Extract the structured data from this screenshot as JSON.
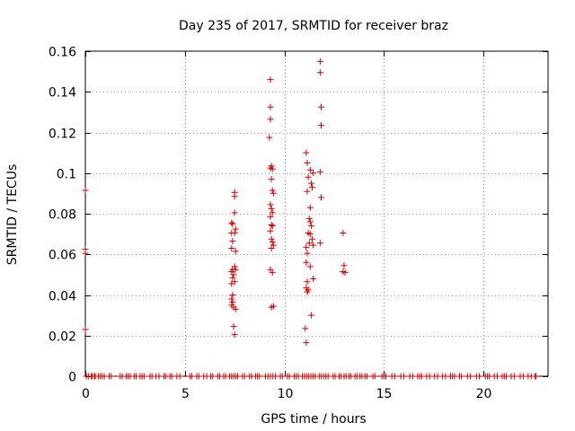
{
  "chart_data": {
    "type": "scatter",
    "title": "Day 235 of 2017, SRMTID for receiver braz",
    "xlabel": "GPS time / hours",
    "ylabel": "SRMTID / TECUs",
    "xlim": [
      0,
      23.25
    ],
    "ylim": [
      0,
      0.16
    ],
    "xticks": [
      0,
      5,
      10,
      15,
      20
    ],
    "xtick_labels": [
      "0",
      "5",
      "10",
      "15",
      "20"
    ],
    "yticks": [
      0,
      0.02,
      0.04,
      0.06,
      0.08,
      0.1,
      0.12,
      0.14,
      0.16
    ],
    "ytick_labels": [
      "0",
      "0.02",
      "0.04",
      "0.06",
      "0.08",
      "0.1",
      "0.12",
      "0.14",
      "0.16"
    ],
    "grid": true,
    "marker": "+",
    "color": "#d40000",
    "series": [
      {
        "name": "SRMTID",
        "points": [
          [
            0.0,
            0.0915
          ],
          [
            0.0,
            0.0625
          ],
          [
            0.0,
            0.0605
          ],
          [
            0.0,
            0.023
          ],
          [
            7.35,
            0.0755
          ],
          [
            7.4,
            0.075
          ],
          [
            7.35,
            0.0705
          ],
          [
            7.4,
            0.0665
          ],
          [
            7.35,
            0.063
          ],
          [
            7.4,
            0.0525
          ],
          [
            7.35,
            0.0515
          ],
          [
            7.45,
            0.05
          ],
          [
            7.4,
            0.0485
          ],
          [
            7.35,
            0.0455
          ],
          [
            7.4,
            0.04
          ],
          [
            7.35,
            0.038
          ],
          [
            7.4,
            0.0365
          ],
          [
            7.35,
            0.035
          ],
          [
            7.45,
            0.034
          ],
          [
            7.5,
            0.0905
          ],
          [
            7.5,
            0.0885
          ],
          [
            7.5,
            0.0805
          ],
          [
            7.55,
            0.0725
          ],
          [
            7.5,
            0.0705
          ],
          [
            7.55,
            0.0615
          ],
          [
            7.5,
            0.054
          ],
          [
            7.55,
            0.0525
          ],
          [
            7.5,
            0.0465
          ],
          [
            7.55,
            0.033
          ],
          [
            7.45,
            0.0245
          ],
          [
            7.5,
            0.0205
          ],
          [
            9.3,
            0.146
          ],
          [
            9.3,
            0.1325
          ],
          [
            9.3,
            0.1265
          ],
          [
            9.25,
            0.1175
          ],
          [
            9.35,
            0.1035
          ],
          [
            9.3,
            0.1025
          ],
          [
            9.4,
            0.102
          ],
          [
            9.35,
            0.097
          ],
          [
            9.4,
            0.0915
          ],
          [
            9.45,
            0.09
          ],
          [
            9.3,
            0.0845
          ],
          [
            9.35,
            0.0825
          ],
          [
            9.4,
            0.0805
          ],
          [
            9.3,
            0.0785
          ],
          [
            9.35,
            0.0745
          ],
          [
            9.4,
            0.074
          ],
          [
            9.3,
            0.0715
          ],
          [
            9.35,
            0.0675
          ],
          [
            9.4,
            0.066
          ],
          [
            9.45,
            0.0645
          ],
          [
            9.35,
            0.063
          ],
          [
            9.3,
            0.0525
          ],
          [
            9.4,
            0.051
          ],
          [
            9.45,
            0.0345
          ],
          [
            9.35,
            0.034
          ],
          [
            11.1,
            0.11
          ],
          [
            11.15,
            0.105
          ],
          [
            11.3,
            0.1015
          ],
          [
            11.45,
            0.1
          ],
          [
            11.2,
            0.098
          ],
          [
            11.35,
            0.095
          ],
          [
            11.4,
            0.093
          ],
          [
            11.15,
            0.091
          ],
          [
            11.3,
            0.083
          ],
          [
            11.25,
            0.0775
          ],
          [
            11.3,
            0.076
          ],
          [
            11.35,
            0.074
          ],
          [
            11.2,
            0.0705
          ],
          [
            11.3,
            0.07
          ],
          [
            11.4,
            0.0675
          ],
          [
            11.25,
            0.0655
          ],
          [
            11.45,
            0.0645
          ],
          [
            11.1,
            0.0635
          ],
          [
            11.15,
            0.0605
          ],
          [
            11.1,
            0.056
          ],
          [
            11.3,
            0.054
          ],
          [
            11.45,
            0.048
          ],
          [
            11.15,
            0.0465
          ],
          [
            11.1,
            0.0435
          ],
          [
            11.2,
            0.0425
          ],
          [
            11.15,
            0.0415
          ],
          [
            11.35,
            0.03
          ],
          [
            11.05,
            0.0235
          ],
          [
            11.1,
            0.0165
          ],
          [
            11.8,
            0.155
          ],
          [
            11.8,
            0.1495
          ],
          [
            11.85,
            0.1325
          ],
          [
            11.85,
            0.1235
          ],
          [
            11.8,
            0.1005
          ],
          [
            11.85,
            0.088
          ],
          [
            11.8,
            0.0655
          ],
          [
            12.95,
            0.0705
          ],
          [
            13.0,
            0.0545
          ],
          [
            12.95,
            0.0515
          ],
          [
            13.05,
            0.051
          ]
        ]
      }
    ],
    "zero_samples": {
      "y": 0,
      "x_ranges": [
        [
          0.05,
          0.15
        ],
        [
          0.3,
          0.35
        ],
        [
          0.45,
          0.5
        ],
        [
          0.65,
          0.75
        ],
        [
          0.85,
          0.95
        ],
        [
          1.2,
          1.3
        ],
        [
          1.75,
          1.85
        ],
        [
          2.05,
          2.25
        ],
        [
          2.45,
          2.55
        ],
        [
          2.75,
          2.95
        ],
        [
          3.25,
          3.35
        ],
        [
          3.55,
          3.7
        ],
        [
          3.95,
          4.05
        ],
        [
          4.25,
          4.35
        ],
        [
          4.6,
          4.75
        ],
        [
          5.25,
          5.35
        ],
        [
          5.6,
          5.7
        ],
        [
          5.95,
          6.1
        ],
        [
          6.3,
          6.4
        ],
        [
          6.65,
          6.75
        ],
        [
          6.95,
          7.05
        ],
        [
          7.25,
          7.65
        ],
        [
          7.9,
          8.0
        ],
        [
          8.25,
          8.35
        ],
        [
          8.55,
          8.75
        ],
        [
          9.05,
          9.55
        ],
        [
          9.8,
          9.9
        ],
        [
          10.15,
          10.25
        ],
        [
          10.5,
          10.7
        ],
        [
          10.9,
          11.55
        ],
        [
          11.75,
          12.2
        ],
        [
          12.45,
          12.55
        ],
        [
          12.75,
          12.85
        ],
        [
          13.0,
          13.1
        ],
        [
          13.25,
          13.35
        ],
        [
          13.55,
          13.65
        ],
        [
          13.8,
          13.9
        ],
        [
          14.05,
          14.15
        ],
        [
          14.45,
          14.55
        ],
        [
          14.9,
          15.1
        ],
        [
          15.4,
          15.55
        ],
        [
          15.85,
          16.0
        ],
        [
          16.3,
          16.45
        ],
        [
          16.7,
          16.9
        ],
        [
          17.15,
          17.3
        ],
        [
          17.55,
          17.7
        ],
        [
          17.95,
          18.1
        ],
        [
          18.35,
          18.55
        ],
        [
          18.8,
          18.9
        ],
        [
          19.2,
          19.35
        ],
        [
          19.65,
          19.8
        ],
        [
          20.1,
          20.3
        ],
        [
          20.55,
          20.7
        ],
        [
          20.95,
          21.15
        ],
        [
          21.4,
          21.55
        ],
        [
          21.85,
          22.0
        ],
        [
          22.25,
          22.4
        ],
        [
          22.6,
          22.65
        ]
      ]
    }
  }
}
